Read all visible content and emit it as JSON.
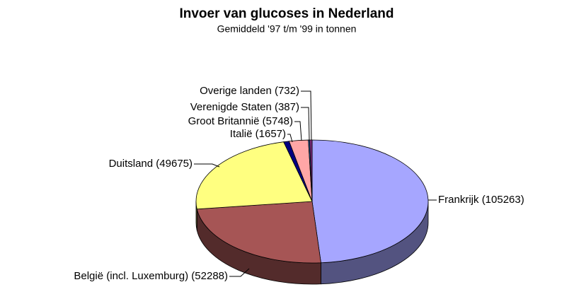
{
  "chart_data": {
    "type": "pie3d",
    "title": "Invoer van glucoses in Nederland",
    "subtitle": "Gemiddeld '97 t/m '99 in tonnen",
    "categories": [
      "Frankrijk",
      "België (incl. Luxemburg)",
      "Duitsland",
      "Italië",
      "Groot Britannië",
      "Verenigde Staten",
      "Overige landen"
    ],
    "values": [
      105263,
      52288,
      49675,
      1657,
      5748,
      387,
      732
    ],
    "value_labels": [
      "(105263)",
      "(52288)",
      "(49675)",
      "(1657)",
      "(5748)",
      "(387)",
      "(732)"
    ],
    "colors": [
      "#a6a6ff",
      "#a65555",
      "#ffff80",
      "#000080",
      "#ffa6a6",
      "#2a6fbf",
      "#7a2a7a"
    ]
  }
}
